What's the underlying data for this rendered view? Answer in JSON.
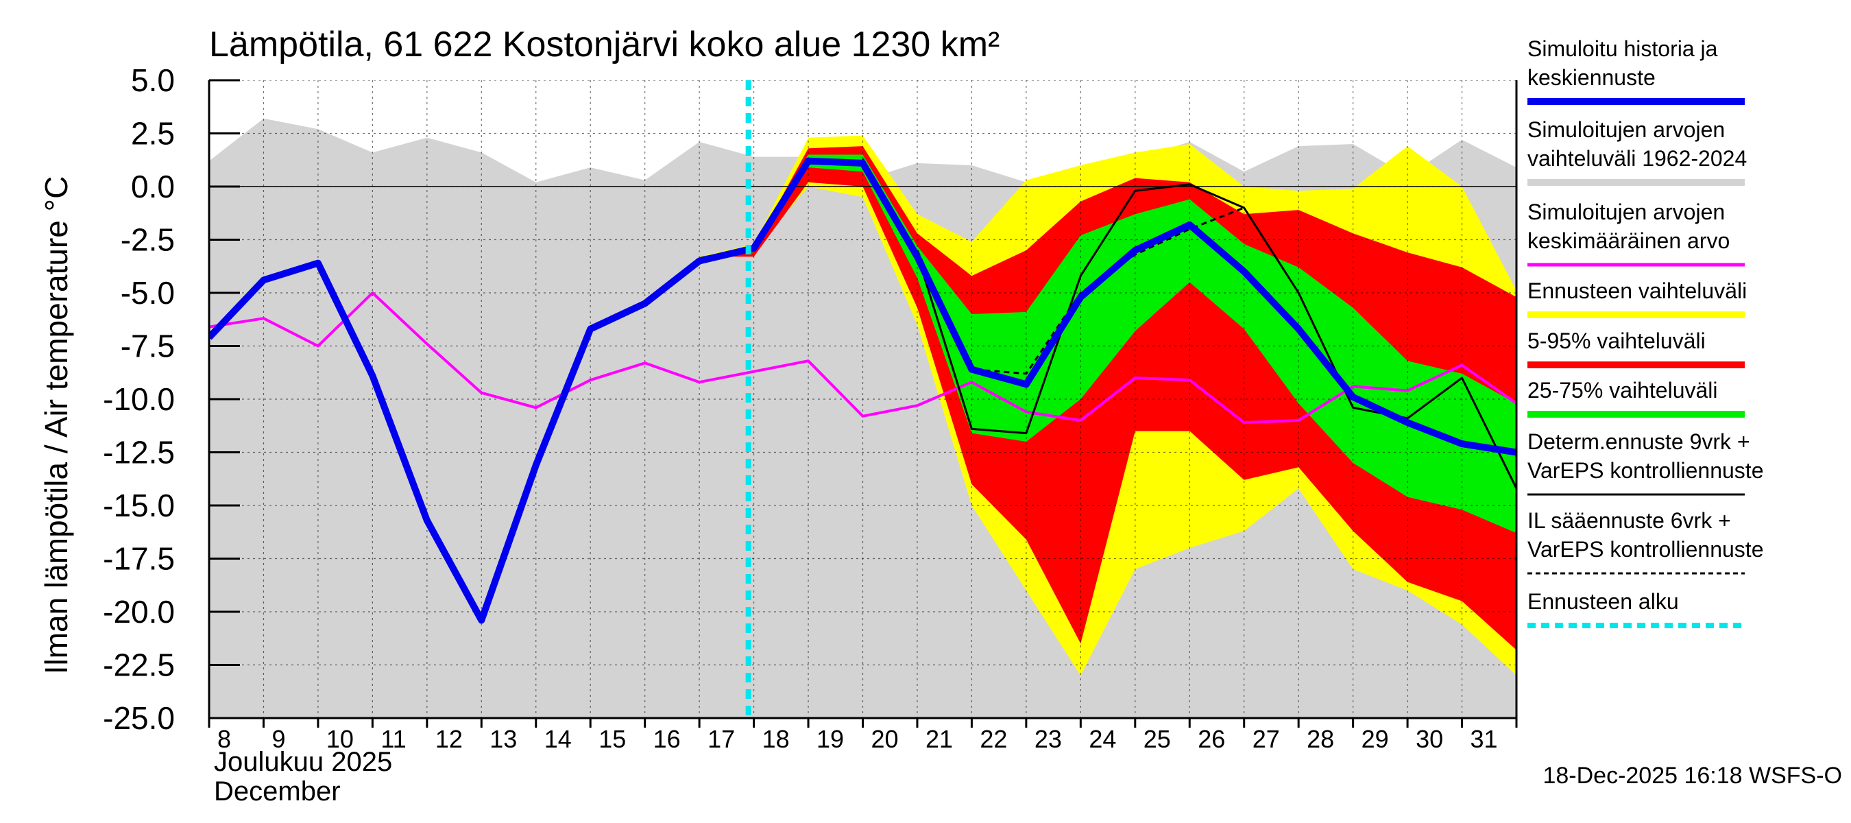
{
  "chart_data": {
    "type": "area",
    "title": "Lämpötila, 61 622 Kostonjärvi koko alue 1230 km²",
    "ylabel": "Ilman lämpötila / Air temperature   °C",
    "month_label_fi": "Joulukuu  2025",
    "month_label_en": "December",
    "timestamp": "18-Dec-2025 16:18 WSFS-O",
    "ylim": [
      -25,
      5
    ],
    "xlim": [
      8,
      32
    ],
    "y_ticks": [
      "5.0",
      "2.5",
      "0.0",
      "-2.5",
      "-5.0",
      "-7.5",
      "-10.0",
      "-12.5",
      "-15.0",
      "-17.5",
      "-20.0",
      "-22.5",
      "-25.0"
    ],
    "x_tick_labels": [
      "8",
      "9",
      "10",
      "11",
      "12",
      "13",
      "14",
      "15",
      "16",
      "17",
      "18",
      "19",
      "20",
      "21",
      "22",
      "23",
      "24",
      "25",
      "26",
      "27",
      "28",
      "29",
      "30",
      "31"
    ],
    "forecast_start": 17.9,
    "legend": [
      {
        "label_lines": [
          "Simuloitu historia ja",
          "keskiennuste"
        ],
        "color": "#0000ee",
        "style": "thick"
      },
      {
        "label_lines": [
          "Simuloitujen arvojen",
          "vaihteluväli 1962-2024"
        ],
        "color": "#d3d3d3",
        "style": "thick"
      },
      {
        "label_lines": [
          "Simuloitujen arvojen",
          "keskimääräinen arvo"
        ],
        "color": "#ff00ff",
        "style": "medium"
      },
      {
        "label_lines": [
          "Ennusteen vaihteluväli"
        ],
        "color": "#ffff00",
        "style": "thick"
      },
      {
        "label_lines": [
          "5-95% vaihteluväli"
        ],
        "color": "#ff0000",
        "style": "thick"
      },
      {
        "label_lines": [
          "25-75% vaihteluväli"
        ],
        "color": "#00ee00",
        "style": "thick"
      },
      {
        "label_lines": [
          "Determ.ennuste 9vrk +",
          "VarEPS kontrolliennuste"
        ],
        "color": "#000000",
        "style": "thin"
      },
      {
        "label_lines": [
          "IL sääennuste 6vrk  +",
          "VarEPS kontrolliennuste"
        ],
        "color": "#000000",
        "style": "dashed"
      },
      {
        "label_lines": [
          "Ennusteen alku"
        ],
        "color": "#00e5ee",
        "style": "dotted"
      }
    ],
    "series": [
      {
        "name": "hist_range",
        "x": [
          8,
          9,
          10,
          11,
          12,
          13,
          14,
          15,
          16,
          17,
          18,
          19,
          20,
          21,
          22,
          23,
          24,
          25,
          26,
          27,
          28,
          29,
          30,
          31,
          32
        ],
        "upper": [
          1.2,
          3.2,
          2.7,
          1.6,
          2.3,
          1.6,
          0.2,
          0.9,
          0.3,
          2.1,
          1.4,
          1.4,
          0.3,
          1.1,
          1.0,
          0.2,
          0.3,
          1.3,
          2.1,
          0.7,
          1.9,
          2.0,
          0.5,
          2.2,
          0.9
        ],
        "lower": [
          -25,
          -25,
          -25,
          -25,
          -25,
          -25,
          -25,
          -25,
          -25,
          -25,
          -25,
          -25,
          -25,
          -25,
          -25,
          -25,
          -25,
          -25,
          -25,
          -25,
          -25,
          -25,
          -25,
          -25,
          -25
        ]
      },
      {
        "name": "forecast_range",
        "x": [
          17,
          18,
          19,
          20,
          21,
          22,
          23,
          24,
          25,
          26,
          27,
          28,
          29,
          30,
          31,
          32
        ],
        "upper": [
          -3.3,
          -2.7,
          2.3,
          2.4,
          -1.3,
          -2.6,
          0.3,
          1.0,
          1.6,
          2.0,
          0.0,
          -0.2,
          -0.1,
          1.9,
          0.0,
          -4.9
        ],
        "lower": [
          -3.3,
          -3.0,
          0.0,
          -0.5,
          -6.5,
          -15.0,
          -19.0,
          -23.0,
          -18.0,
          -17.0,
          -16.2,
          -14.2,
          -18.0,
          -19.0,
          -20.6,
          -23.0
        ]
      },
      {
        "name": "p5_95",
        "x": [
          17,
          18,
          19,
          20,
          21,
          22,
          23,
          24,
          25,
          26,
          27,
          28,
          29,
          30,
          31,
          32
        ],
        "upper": [
          -3.3,
          -2.9,
          1.8,
          1.9,
          -2.2,
          -4.2,
          -3.0,
          -0.7,
          0.4,
          0.2,
          -1.3,
          -1.1,
          -2.2,
          -3.1,
          -3.8,
          -5.2
        ],
        "lower": [
          -3.3,
          -3.3,
          0.2,
          0.0,
          -5.7,
          -14.0,
          -16.6,
          -21.5,
          -11.5,
          -11.5,
          -13.8,
          -13.2,
          -16.2,
          -18.6,
          -19.5,
          -21.8
        ]
      },
      {
        "name": "p25_75",
        "x": [
          17,
          18,
          19,
          20,
          21,
          22,
          23,
          24,
          25,
          26,
          27,
          28,
          29,
          30,
          31,
          32
        ],
        "upper": [
          -3.3,
          -2.9,
          1.5,
          1.5,
          -2.8,
          -6.0,
          -5.9,
          -2.3,
          -1.3,
          -0.6,
          -2.7,
          -3.8,
          -5.7,
          -8.2,
          -8.8,
          -10.2
        ],
        "lower": [
          -3.3,
          -3.1,
          0.9,
          0.7,
          -4.3,
          -11.6,
          -12.0,
          -10.0,
          -6.8,
          -4.5,
          -6.7,
          -10.2,
          -13.0,
          -14.6,
          -15.2,
          -16.3
        ]
      },
      {
        "name": "mean_climate",
        "x": [
          8,
          9,
          10,
          11,
          12,
          13,
          14,
          15,
          16,
          17,
          18,
          19,
          20,
          21,
          22,
          23,
          24,
          25,
          26,
          27,
          28,
          29,
          30,
          31,
          32
        ],
        "values": [
          -6.6,
          -6.2,
          -7.5,
          -5.0,
          -7.4,
          -9.7,
          -10.4,
          -9.1,
          -8.3,
          -9.2,
          -8.7,
          -8.2,
          -10.8,
          -10.3,
          -9.2,
          -10.6,
          -11.0,
          -9.0,
          -9.1,
          -11.1,
          -11.0,
          -9.4,
          -9.6,
          -8.4,
          -10.2
        ]
      },
      {
        "name": "sim_history_median",
        "x": [
          8,
          9,
          10,
          11,
          12,
          13,
          14,
          15,
          16,
          17,
          18,
          19,
          20,
          21,
          22,
          23,
          24,
          25,
          26,
          27,
          28,
          29,
          30,
          31,
          32
        ],
        "values": [
          -7.1,
          -4.4,
          -3.6,
          -8.9,
          -15.7,
          -20.4,
          -13.1,
          -6.7,
          -5.5,
          -3.5,
          -2.9,
          1.2,
          1.1,
          -3.3,
          -8.6,
          -9.3,
          -5.2,
          -3.0,
          -1.8,
          -4.0,
          -6.7,
          -9.9,
          -11.1,
          -12.1,
          -12.5
        ]
      },
      {
        "name": "determ_ennuste",
        "x": [
          20,
          21,
          22,
          23,
          24,
          25,
          26,
          27,
          28,
          29,
          30,
          31,
          32
        ],
        "values": [
          1.3,
          -3.2,
          -11.4,
          -11.6,
          -4.2,
          -0.2,
          0.1,
          -1.0,
          -5.0,
          -10.4,
          -10.9,
          -9.0,
          -14.2
        ]
      },
      {
        "name": "il_saaennuste",
        "x": [
          21,
          22,
          23,
          24,
          25,
          26,
          27
        ],
        "values": [
          -3.0,
          -8.6,
          -8.8,
          -5.0,
          -3.2,
          -2.0,
          -1.0
        ]
      }
    ]
  }
}
